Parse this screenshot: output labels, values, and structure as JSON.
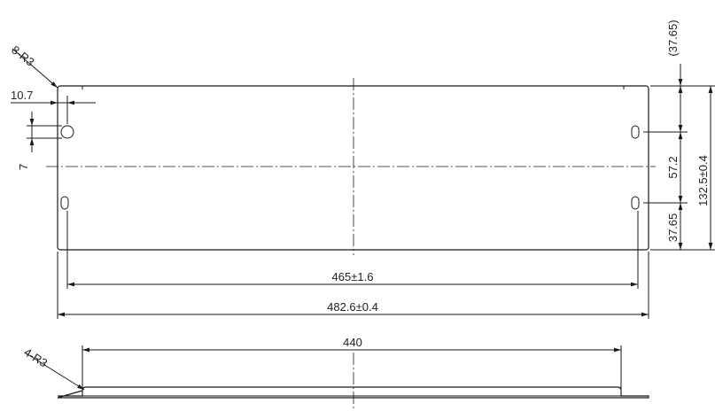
{
  "front_view": {
    "corner_radius_label": "8-R3",
    "hole_offset_label": "10.7",
    "hole_width_label": "7",
    "overall_width_label": "482.6±0.4",
    "hole_span_label": "465±1.6",
    "overall_height_label": "132.5±0.4",
    "top_offset_label": "(37.65)",
    "hole_pitch_label": "57.2",
    "bottom_offset_label": "37.65"
  },
  "bottom_view": {
    "corner_radius_label": "4-R3",
    "inner_width_label": "440"
  },
  "colors": {
    "line": "#1a1a1a",
    "background": "#ffffff"
  }
}
